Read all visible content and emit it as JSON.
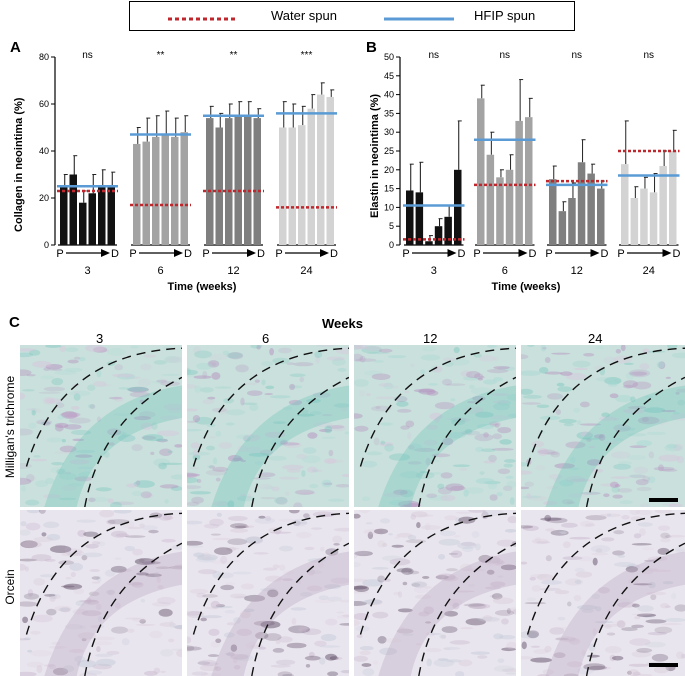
{
  "legend": {
    "water_label": "Water spun",
    "hfip_label": "HFIP spun",
    "water_color": "#c0272d",
    "hfip_color": "#5b9bd5"
  },
  "chart_data": [
    {
      "panel": "A",
      "type": "bar",
      "ylabel": "Collagen in neointima (%)",
      "xlabel": "Time (weeks)",
      "ylim": [
        0,
        80
      ],
      "yticks": [
        0,
        20,
        40,
        60,
        80
      ],
      "groups": [
        {
          "label": "3",
          "significance": "ns",
          "color": "#111111",
          "values": [
            25,
            30,
            18,
            22,
            25,
            25
          ],
          "errors": [
            5,
            8,
            5,
            8,
            7,
            6
          ],
          "water_line": 23,
          "hfip_line": 25
        },
        {
          "label": "6",
          "significance": "**",
          "color": "#a3a3a3",
          "values": [
            43,
            44,
            46,
            47,
            46,
            48
          ],
          "errors": [
            7,
            10,
            9,
            10,
            8,
            7
          ],
          "water_line": 17,
          "hfip_line": 47
        },
        {
          "label": "12",
          "significance": "**",
          "color": "#7f7f7f",
          "values": [
            54,
            50,
            54,
            55,
            55,
            54
          ],
          "errors": [
            5,
            6,
            6,
            6,
            6,
            4
          ],
          "water_line": 23,
          "hfip_line": 55
        },
        {
          "label": "24",
          "significance": "***",
          "color": "#d3d3d3",
          "values": [
            50,
            50,
            51,
            58,
            64,
            63
          ],
          "errors": [
            11,
            10,
            8,
            6,
            5,
            3
          ],
          "water_line": 16,
          "hfip_line": 56
        }
      ],
      "direction_start": "P",
      "direction_end": "D"
    },
    {
      "panel": "B",
      "type": "bar",
      "ylabel": "Elastin in neointima (%)",
      "xlabel": "Time (weeks)",
      "ylim": [
        0,
        50
      ],
      "yticks": [
        0,
        5,
        10,
        15,
        20,
        25,
        30,
        35,
        40,
        45,
        50
      ],
      "groups": [
        {
          "label": "3",
          "significance": "ns",
          "color": "#111111",
          "values": [
            14.5,
            14,
            1,
            5,
            7.5,
            20
          ],
          "errors": [
            7,
            8,
            1.5,
            2,
            3,
            13
          ],
          "water_line": 1.5,
          "hfip_line": 10.5
        },
        {
          "label": "6",
          "significance": "ns",
          "color": "#a3a3a3",
          "values": [
            39,
            24,
            18,
            20,
            33,
            34
          ],
          "errors": [
            3.5,
            6,
            2,
            4,
            11,
            5
          ],
          "water_line": 16,
          "hfip_line": 28
        },
        {
          "label": "12",
          "significance": "ns",
          "color": "#7f7f7f",
          "values": [
            17.5,
            9,
            12.5,
            22,
            19,
            15
          ],
          "errors": [
            3.5,
            2.5,
            4,
            6,
            2.5,
            2
          ],
          "water_line": 17,
          "hfip_line": 16
        },
        {
          "label": "24",
          "significance": "ns",
          "color": "#d3d3d3",
          "values": [
            21.5,
            12.5,
            15,
            14,
            21,
            25
          ],
          "errors": [
            11.5,
            3,
            3,
            5,
            4,
            5.5
          ],
          "water_line": 25,
          "hfip_line": 18.5
        }
      ],
      "direction_start": "P",
      "direction_end": "D"
    }
  ],
  "section_c": {
    "panel_label": "C",
    "title": "Weeks",
    "columns": [
      "3",
      "6",
      "12",
      "24"
    ],
    "rows": [
      "Milligan's trichrome",
      "Orcein"
    ]
  }
}
